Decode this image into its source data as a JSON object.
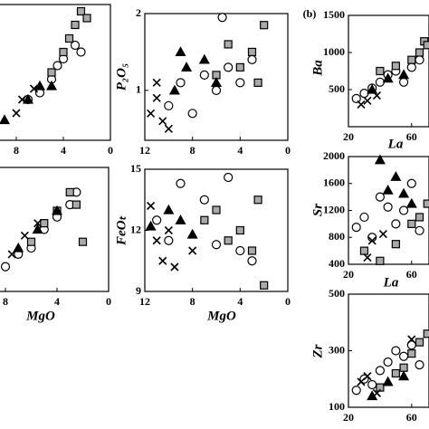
{
  "chart_data": [
    {
      "type": "scatter",
      "xlim": [
        12,
        0
      ],
      "ylim": [
        0,
        10
      ],
      "xticks": [
        8,
        4,
        0
      ],
      "series": [
        {
          "marker": "circle",
          "color": "#ffffff",
          "x": [
            7,
            6,
            5,
            4.5,
            4,
            3,
            2.5
          ],
          "values": [
            3,
            3.5,
            4.5,
            5.5,
            6,
            7,
            6.5
          ]
        },
        {
          "marker": "square",
          "color": "#aaaaaa",
          "x": [
            5,
            4,
            3,
            2.5,
            2,
            3.5
          ],
          "values": [
            5,
            6.5,
            8.5,
            9.5,
            9,
            7.5
          ]
        },
        {
          "marker": "triangle",
          "color": "#000000",
          "x": [
            9,
            7,
            6,
            5
          ],
          "values": [
            1.5,
            3,
            4,
            4
          ]
        },
        {
          "marker": "cross",
          "color": "#000000",
          "x": [
            8,
            7.5,
            6.5
          ],
          "values": [
            2,
            3,
            3.8
          ]
        }
      ]
    },
    {
      "type": "scatter",
      "y_label": "P₂O₅",
      "xlim": [
        12,
        0
      ],
      "ylim": [
        0.35,
        2
      ],
      "xticks": [
        12,
        8,
        4,
        0
      ],
      "yticks": [
        1,
        2
      ],
      "series": [
        {
          "marker": "circle",
          "color": "#ffffff",
          "x": [
            10,
            9,
            8,
            7,
            6,
            5.5,
            5,
            4,
            3
          ],
          "values": [
            0.8,
            1.1,
            0.7,
            1.2,
            1.0,
            1.95,
            1.3,
            1.1,
            1.4
          ]
        },
        {
          "marker": "square",
          "color": "#aaaaaa",
          "x": [
            6,
            5,
            4,
            3,
            2.5,
            2
          ],
          "values": [
            1.2,
            1.6,
            1.3,
            1.5,
            1.1,
            1.85
          ]
        },
        {
          "marker": "triangle",
          "color": "#000000",
          "x": [
            9.5,
            9,
            8.5,
            7,
            6
          ],
          "values": [
            1.0,
            1.5,
            1.3,
            1.4,
            1.1
          ]
        },
        {
          "marker": "cross",
          "color": "#000000",
          "x": [
            11.5,
            11,
            10.5,
            10,
            11
          ],
          "values": [
            0.7,
            1.1,
            0.6,
            0.5,
            0.9
          ]
        }
      ]
    },
    {
      "type": "scatter",
      "x_label": "MgO",
      "xlim": [
        12,
        0
      ],
      "ylim": [
        0,
        10
      ],
      "xticks": [
        8,
        4,
        0
      ],
      "series": [
        {
          "marker": "circle",
          "color": "#ffffff",
          "x": [
            8,
            7,
            6,
            5,
            4,
            3,
            2.5
          ],
          "values": [
            2,
            3,
            3.5,
            5,
            6,
            7,
            8
          ]
        },
        {
          "marker": "square",
          "color": "#aaaaaa",
          "x": [
            6,
            5,
            4,
            3,
            2.5,
            2
          ],
          "values": [
            4,
            5.5,
            6.5,
            8,
            7,
            4
          ]
        },
        {
          "marker": "triangle",
          "color": "#000000",
          "x": [
            7,
            5.5,
            4
          ],
          "values": [
            3.5,
            5,
            6.5
          ]
        },
        {
          "marker": "cross",
          "color": "#000000",
          "x": [
            7.5,
            6.5,
            5.5
          ],
          "values": [
            3,
            4.5,
            5.5
          ]
        }
      ]
    },
    {
      "type": "scatter",
      "x_label": "MgO",
      "y_label": "FeOₜ",
      "xlim": [
        12,
        0
      ],
      "ylim": [
        9,
        15
      ],
      "xticks": [
        12,
        8,
        4,
        0
      ],
      "yticks": [
        9,
        12,
        15
      ],
      "series": [
        {
          "marker": "circle",
          "color": "#ffffff",
          "x": [
            11,
            10,
            9,
            7,
            6,
            5,
            4,
            3
          ],
          "values": [
            12.5,
            11.5,
            14.3,
            13.5,
            11.3,
            14.6,
            11,
            10.5
          ]
        },
        {
          "marker": "square",
          "color": "#aaaaaa",
          "x": [
            7,
            6,
            5,
            4,
            3,
            2,
            2.5
          ],
          "values": [
            12.5,
            13,
            11.5,
            12,
            11,
            9.3,
            13.5
          ]
        },
        {
          "marker": "triangle",
          "color": "#000000",
          "x": [
            11.5,
            10,
            9,
            8
          ],
          "values": [
            12.2,
            13,
            12.5,
            11.8
          ]
        },
        {
          "marker": "cross",
          "color": "#000000",
          "x": [
            11.5,
            11,
            10.5,
            10,
            9.5,
            8
          ],
          "values": [
            13.2,
            11.5,
            10.5,
            12,
            10.2,
            11
          ]
        }
      ]
    },
    {
      "type": "scatter",
      "panel_label": "(b)",
      "x_label": "La",
      "y_label": "Ba",
      "xlim": [
        20,
        71
      ],
      "ylim": [
        0,
        1500
      ],
      "xticks": [
        20,
        60
      ],
      "yticks": [
        500,
        1000,
        1500
      ],
      "series": [
        {
          "marker": "circle",
          "color": "#ffffff",
          "x": [
            25,
            30,
            35,
            40,
            45,
            50,
            55,
            60,
            65
          ],
          "values": [
            380,
            450,
            520,
            600,
            700,
            750,
            600,
            800,
            900
          ]
        },
        {
          "marker": "square",
          "color": "#aaaaaa",
          "x": [
            40,
            50,
            60,
            65,
            68,
            70
          ],
          "values": [
            750,
            820,
            900,
            1000,
            1150,
            1100
          ]
        },
        {
          "marker": "triangle",
          "color": "#000000",
          "x": [
            35,
            45,
            55
          ],
          "values": [
            500,
            650,
            700
          ]
        },
        {
          "marker": "cross",
          "color": "#000000",
          "x": [
            28,
            32,
            38
          ],
          "values": [
            300,
            350,
            420
          ]
        }
      ]
    },
    {
      "type": "scatter",
      "x_label": "La",
      "y_label": "Sr",
      "xlim": [
        20,
        71
      ],
      "ylim": [
        400,
        2000
      ],
      "xticks": [
        20,
        60
      ],
      "yticks": [
        400,
        800,
        1200,
        1600,
        2000
      ],
      "series": [
        {
          "marker": "circle",
          "color": "#ffffff",
          "x": [
            25,
            30,
            35,
            40,
            45,
            50,
            55,
            60,
            65
          ],
          "values": [
            950,
            1100,
            800,
            1400,
            1250,
            1000,
            1200,
            1600,
            900
          ]
        },
        {
          "marker": "square",
          "color": "#aaaaaa",
          "x": [
            30,
            40,
            50,
            60,
            65,
            70
          ],
          "values": [
            600,
            450,
            700,
            1000,
            1100,
            1300
          ]
        },
        {
          "marker": "triangle",
          "color": "#000000",
          "x": [
            40,
            45,
            50,
            55,
            60
          ],
          "values": [
            1950,
            1500,
            1700,
            1450,
            1300
          ]
        },
        {
          "marker": "cross",
          "color": "#000000",
          "x": [
            32,
            35,
            42
          ],
          "values": [
            500,
            750,
            850
          ]
        }
      ]
    },
    {
      "type": "scatter",
      "y_label": "Zr",
      "xlim": [
        20,
        71
      ],
      "ylim": [
        100,
        500
      ],
      "xticks": [
        20,
        60
      ],
      "yticks": [
        100,
        300,
        500
      ],
      "series": [
        {
          "marker": "circle",
          "color": "#ffffff",
          "x": [
            25,
            30,
            35,
            40,
            45,
            50,
            55,
            60,
            65
          ],
          "values": [
            160,
            200,
            180,
            230,
            260,
            300,
            280,
            320,
            250
          ]
        },
        {
          "marker": "square",
          "color": "#aaaaaa",
          "x": [
            40,
            50,
            55,
            60,
            65,
            70
          ],
          "values": [
            170,
            220,
            240,
            290,
            330,
            360
          ]
        },
        {
          "marker": "triangle",
          "color": "#000000",
          "x": [
            35,
            45,
            55
          ],
          "values": [
            140,
            190,
            210
          ]
        },
        {
          "marker": "cross",
          "color": "#000000",
          "x": [
            28,
            32,
            38,
            60
          ],
          "values": [
            190,
            210,
            150,
            340
          ]
        }
      ]
    }
  ]
}
